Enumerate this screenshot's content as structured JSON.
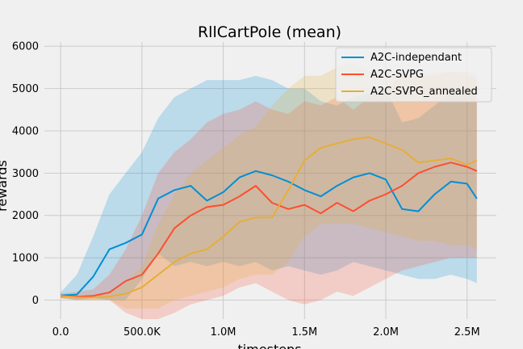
{
  "chart_data": {
    "type": "line",
    "title": "RllCartPole (mean)",
    "xlabel": "timesteps",
    "ylabel": "rewards",
    "xlim": [
      -100000,
      2680000
    ],
    "ylim": [
      -450,
      6100
    ],
    "x_ticks": [
      {
        "value": 0,
        "label": "0.0"
      },
      {
        "value": 500000,
        "label": "500.0K"
      },
      {
        "value": 1000000,
        "label": "1.0M"
      },
      {
        "value": 1500000,
        "label": "1.5M"
      },
      {
        "value": 2000000,
        "label": "2.0M"
      },
      {
        "value": 2500000,
        "label": "2.5M"
      }
    ],
    "y_ticks": [
      {
        "value": 0,
        "label": "0"
      },
      {
        "value": 1000,
        "label": "1000"
      },
      {
        "value": 2000,
        "label": "2000"
      },
      {
        "value": 3000,
        "label": "3000"
      },
      {
        "value": 4000,
        "label": "4000"
      },
      {
        "value": 5000,
        "label": "5000"
      },
      {
        "value": 6000,
        "label": "6000"
      }
    ],
    "grid": true,
    "legend_position": "top-right",
    "x": [
      0,
      100000,
      200000,
      300000,
      400000,
      500000,
      600000,
      700000,
      800000,
      900000,
      1000000,
      1100000,
      1200000,
      1300000,
      1400000,
      1500000,
      1600000,
      1700000,
      1800000,
      1900000,
      2000000,
      2100000,
      2200000,
      2300000,
      2400000,
      2500000,
      2560000
    ],
    "series": [
      {
        "name": "A2C-independant",
        "color": "#008fd5",
        "values": [
          110,
          130,
          550,
          1200,
          1350,
          1550,
          2400,
          2600,
          2700,
          2350,
          2550,
          2900,
          3050,
          2950,
          2800,
          2600,
          2450,
          2700,
          2900,
          3000,
          2850,
          2150,
          2100,
          2500,
          2800,
          2750,
          2400
        ],
        "upper": [
          180,
          600,
          1500,
          2500,
          3000,
          3500,
          4300,
          4800,
          5000,
          5200,
          5200,
          5200,
          5300,
          5200,
          5000,
          5000,
          4700,
          4600,
          4800,
          4900,
          5000,
          4200,
          4300,
          4600,
          4900,
          5000,
          4800
        ],
        "lower": [
          50,
          0,
          50,
          0,
          0,
          500,
          1100,
          800,
          900,
          800,
          900,
          800,
          900,
          700,
          800,
          700,
          600,
          700,
          900,
          800,
          700,
          600,
          500,
          500,
          600,
          500,
          400
        ]
      },
      {
        "name": "A2C-SVPG",
        "color": "#fc4f30",
        "values": [
          90,
          80,
          100,
          180,
          450,
          600,
          1100,
          1700,
          2000,
          2200,
          2250,
          2450,
          2700,
          2300,
          2150,
          2250,
          2050,
          2300,
          2100,
          2350,
          2500,
          2700,
          3000,
          3150,
          3250,
          3150,
          3050
        ],
        "upper": [
          150,
          200,
          250,
          600,
          1200,
          2000,
          3000,
          3500,
          3800,
          4200,
          4400,
          4500,
          4700,
          4500,
          4400,
          4700,
          4600,
          4800,
          4500,
          4800,
          5000,
          5300,
          5300,
          5300,
          5400,
          5400,
          5300
        ],
        "lower": [
          40,
          0,
          0,
          0,
          -300,
          -450,
          -450,
          -300,
          -100,
          0,
          100,
          300,
          400,
          200,
          0,
          -100,
          0,
          200,
          100,
          300,
          500,
          700,
          800,
          900,
          1000,
          1000,
          1000
        ]
      },
      {
        "name": "A2C-SVPG_annealed",
        "color": "#e5ae38",
        "values": [
          100,
          60,
          60,
          80,
          150,
          300,
          600,
          900,
          1100,
          1200,
          1500,
          1850,
          1950,
          1950,
          2600,
          3300,
          3600,
          3700,
          3800,
          3850,
          3700,
          3550,
          3250,
          3300,
          3350,
          3200,
          3300
        ],
        "upper": [
          150,
          100,
          100,
          150,
          400,
          800,
          1800,
          2500,
          3000,
          3300,
          3600,
          3900,
          4100,
          4600,
          5000,
          5300,
          5300,
          5500,
          5600,
          5400,
          5500,
          5300,
          5300,
          5400,
          5400,
          5300,
          5200
        ],
        "lower": [
          50,
          0,
          0,
          0,
          -200,
          -200,
          -200,
          0,
          100,
          200,
          300,
          500,
          600,
          600,
          900,
          1500,
          1800,
          1800,
          1800,
          1700,
          1600,
          1500,
          1400,
          1400,
          1300,
          1300,
          1200
        ]
      }
    ]
  }
}
